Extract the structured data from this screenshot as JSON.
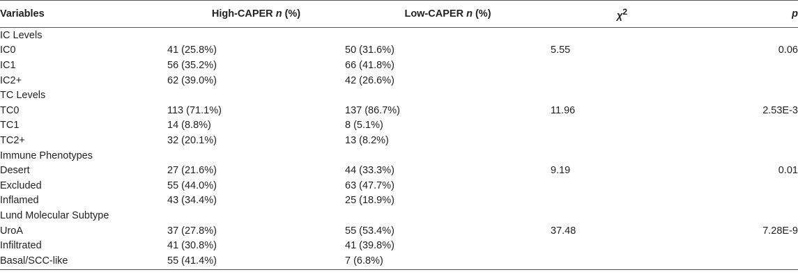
{
  "header": {
    "variables": "Variables",
    "high_label": "High-CAPER ",
    "high_n": "n",
    "high_pct": " (%)",
    "low_label": "Low-CAPER ",
    "low_n": "n",
    "low_pct": " (%)",
    "chi_base": "χ",
    "chi_sup": "2",
    "p": "p"
  },
  "groups": [
    {
      "title": "IC Levels",
      "rows": [
        {
          "label": "IC0",
          "high": "41 (25.8%)",
          "low": "50 (31.6%)",
          "chi2": "5.55",
          "p": "0.06"
        },
        {
          "label": "IC1",
          "high": "56 (35.2%)",
          "low": "66 (41.8%)",
          "chi2": "",
          "p": ""
        },
        {
          "label": "IC2+",
          "high": "62 (39.0%)",
          "low": "42 (26.6%)",
          "chi2": "",
          "p": ""
        }
      ]
    },
    {
      "title": "TC Levels",
      "rows": [
        {
          "label": "TC0",
          "high": "113 (71.1%)",
          "low": "137 (86.7%)",
          "chi2": "11.96",
          "p": "2.53E-3"
        },
        {
          "label": "TC1",
          "high": "14 (8.8%)",
          "low": "8 (5.1%)",
          "chi2": "",
          "p": ""
        },
        {
          "label": "TC2+",
          "high": "32 (20.1%)",
          "low": "13 (8.2%)",
          "chi2": "",
          "p": ""
        }
      ]
    },
    {
      "title": "Immune Phenotypes",
      "rows": [
        {
          "label": "Desert",
          "high": "27 (21.6%)",
          "low": "44 (33.3%)",
          "chi2": "9.19",
          "p": "0.01"
        },
        {
          "label": "Excluded",
          "high": "55 (44.0%)",
          "low": "63 (47.7%)",
          "chi2": "",
          "p": ""
        },
        {
          "label": "Inflamed",
          "high": "43 (34.4%)",
          "low": "25 (18.9%)",
          "chi2": "",
          "p": ""
        }
      ]
    },
    {
      "title": "Lund Molecular Subtype",
      "rows": [
        {
          "label": "UroA",
          "high": "37 (27.8%)",
          "low": "55 (53.4%)",
          "chi2": "37.48",
          "p": "7.28E-9"
        },
        {
          "label": "Infiltrated",
          "high": "41 (30.8%)",
          "low": "41 (39.8%)",
          "chi2": "",
          "p": ""
        },
        {
          "label": "Basal/SCC-like",
          "high": "55 (41.4%)",
          "low": "7 (6.8%)",
          "chi2": "",
          "p": ""
        }
      ]
    }
  ]
}
